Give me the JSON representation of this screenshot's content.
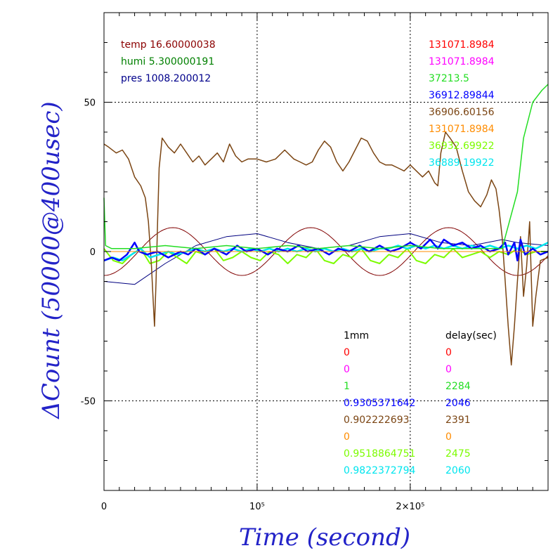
{
  "chart_data": {
    "type": "line",
    "xlabel": "Time (second)",
    "ylabel": "ΔCount (50000@400usec)",
    "xlim": [
      0,
      290000
    ],
    "ylim": [
      -80,
      80
    ],
    "x_tick_labels": [
      {
        "value": 0,
        "label": "0"
      },
      {
        "value": 100000,
        "label": "10⁵"
      },
      {
        "value": 200000,
        "label": "2×10⁵"
      }
    ],
    "y_tick_labels": [
      {
        "value": 50,
        "label": "50"
      },
      {
        "value": 0,
        "label": "0"
      },
      {
        "value": -50,
        "label": "-50"
      }
    ],
    "grid": true,
    "env_readings": [
      {
        "text": "temp 16.60000038",
        "color": "#8b0000"
      },
      {
        "text": "humi 5.300000191",
        "color": "#008000"
      },
      {
        "text": "pres 1008.200012",
        "color": "#00008b"
      }
    ],
    "channel_headers": {
      "col1": "1mm",
      "col2": "delay(sec)"
    },
    "series": [
      {
        "color": "#ff0000",
        "base": "131071.8984",
        "onemm": "0",
        "delay": "0",
        "points": [
          [
            0,
            0
          ],
          [
            290000,
            0
          ]
        ]
      },
      {
        "color": "#ff00ff",
        "base": "131071.8984",
        "onemm": "0",
        "delay": "0",
        "points": [
          [
            0,
            0
          ],
          [
            290000,
            0
          ]
        ]
      },
      {
        "color": "#22dd22",
        "base": "37213.5",
        "onemm": "1",
        "delay": "2284",
        "points": [
          [
            0,
            18
          ],
          [
            1000,
            2
          ],
          [
            5000,
            1
          ],
          [
            20000,
            1
          ],
          [
            40000,
            2
          ],
          [
            60000,
            1
          ],
          [
            80000,
            2
          ],
          [
            100000,
            1
          ],
          [
            120000,
            2
          ],
          [
            140000,
            1
          ],
          [
            160000,
            2
          ],
          [
            180000,
            1
          ],
          [
            200000,
            2
          ],
          [
            220000,
            1
          ],
          [
            240000,
            1
          ],
          [
            260000,
            1
          ],
          [
            270000,
            20
          ],
          [
            274000,
            38
          ],
          [
            280000,
            50
          ],
          [
            286000,
            54
          ],
          [
            290000,
            56
          ]
        ]
      },
      {
        "color": "#0000ff",
        "base": "36912.89844",
        "onemm": "0.9305371642",
        "delay": "2046",
        "points": [
          [
            0,
            -3
          ],
          [
            5000,
            -2
          ],
          [
            10000,
            -3
          ],
          [
            15000,
            -1
          ],
          [
            20000,
            3
          ],
          [
            23000,
            0
          ],
          [
            28000,
            -1
          ],
          [
            35000,
            0
          ],
          [
            42000,
            -2
          ],
          [
            50000,
            0
          ],
          [
            55000,
            -1
          ],
          [
            60000,
            1
          ],
          [
            66000,
            -1
          ],
          [
            72000,
            1
          ],
          [
            80000,
            -1
          ],
          [
            87000,
            2
          ],
          [
            93000,
            0
          ],
          [
            100000,
            1
          ],
          [
            107000,
            -1
          ],
          [
            113000,
            1
          ],
          [
            120000,
            0
          ],
          [
            127000,
            2
          ],
          [
            133000,
            0
          ],
          [
            140000,
            1
          ],
          [
            147000,
            -1
          ],
          [
            153000,
            1
          ],
          [
            160000,
            0
          ],
          [
            167000,
            2
          ],
          [
            173000,
            0
          ],
          [
            180000,
            2
          ],
          [
            187000,
            0
          ],
          [
            193000,
            1
          ],
          [
            200000,
            3
          ],
          [
            207000,
            1
          ],
          [
            213000,
            4
          ],
          [
            218000,
            1
          ],
          [
            222000,
            4
          ],
          [
            228000,
            2
          ],
          [
            234000,
            3
          ],
          [
            240000,
            1
          ],
          [
            246000,
            2
          ],
          [
            252000,
            0
          ],
          [
            258000,
            1
          ],
          [
            262000,
            3
          ],
          [
            264000,
            -1
          ],
          [
            268000,
            3
          ],
          [
            270000,
            -3
          ],
          [
            272000,
            4
          ],
          [
            275000,
            -1
          ],
          [
            280000,
            1
          ],
          [
            285000,
            -1
          ],
          [
            290000,
            0
          ]
        ]
      },
      {
        "color": "#7b4513",
        "base": "36906.60156",
        "onemm": "0.902222693",
        "delay": "2391",
        "points": [
          [
            0,
            36
          ],
          [
            3000,
            35
          ],
          [
            8000,
            33
          ],
          [
            12000,
            34
          ],
          [
            16000,
            31
          ],
          [
            20000,
            25
          ],
          [
            24000,
            22
          ],
          [
            27000,
            18
          ],
          [
            29000,
            10
          ],
          [
            31000,
            -5
          ],
          [
            32000,
            -15
          ],
          [
            33000,
            -25
          ],
          [
            34000,
            -10
          ],
          [
            35000,
            10
          ],
          [
            36000,
            28
          ],
          [
            38000,
            38
          ],
          [
            42000,
            35
          ],
          [
            46000,
            33
          ],
          [
            50000,
            36
          ],
          [
            54000,
            33
          ],
          [
            58000,
            30
          ],
          [
            62000,
            32
          ],
          [
            66000,
            29
          ],
          [
            70000,
            31
          ],
          [
            74000,
            33
          ],
          [
            78000,
            30
          ],
          [
            82000,
            36
          ],
          [
            86000,
            32
          ],
          [
            90000,
            30
          ],
          [
            94000,
            31
          ],
          [
            100000,
            31
          ],
          [
            106000,
            30
          ],
          [
            112000,
            31
          ],
          [
            118000,
            34
          ],
          [
            124000,
            31
          ],
          [
            128000,
            30
          ],
          [
            132000,
            29
          ],
          [
            136000,
            30
          ],
          [
            140000,
            34
          ],
          [
            144000,
            37
          ],
          [
            148000,
            35
          ],
          [
            152000,
            30
          ],
          [
            156000,
            27
          ],
          [
            160000,
            30
          ],
          [
            164000,
            34
          ],
          [
            168000,
            38
          ],
          [
            172000,
            37
          ],
          [
            176000,
            33
          ],
          [
            180000,
            30
          ],
          [
            184000,
            29
          ],
          [
            188000,
            29
          ],
          [
            192000,
            28
          ],
          [
            196000,
            27
          ],
          [
            200000,
            29
          ],
          [
            204000,
            27
          ],
          [
            208000,
            25
          ],
          [
            212000,
            27
          ],
          [
            216000,
            23
          ],
          [
            218000,
            22
          ],
          [
            220000,
            33
          ],
          [
            223000,
            40
          ],
          [
            226000,
            38
          ],
          [
            230000,
            35
          ],
          [
            234000,
            27
          ],
          [
            238000,
            20
          ],
          [
            242000,
            17
          ],
          [
            246000,
            15
          ],
          [
            250000,
            19
          ],
          [
            253000,
            24
          ],
          [
            256000,
            21
          ],
          [
            258000,
            14
          ],
          [
            260000,
            5
          ],
          [
            262000,
            -10
          ],
          [
            264000,
            -25
          ],
          [
            266000,
            -38
          ],
          [
            268000,
            -25
          ],
          [
            270000,
            -10
          ],
          [
            272000,
            5
          ],
          [
            274000,
            -15
          ],
          [
            276000,
            -5
          ],
          [
            278000,
            10
          ],
          [
            280000,
            -25
          ],
          [
            282000,
            -15
          ],
          [
            285000,
            -3
          ],
          [
            290000,
            -2
          ]
        ]
      },
      {
        "color": "#ff8c00",
        "base": "131071.8984",
        "onemm": "0",
        "delay": "0",
        "points": [
          [
            0,
            0
          ],
          [
            290000,
            0
          ]
        ]
      },
      {
        "color": "#7cfc00",
        "base": "36932.69922",
        "onemm": "0.9518864751",
        "delay": "2475",
        "points": [
          [
            0,
            1
          ],
          [
            6000,
            -3
          ],
          [
            12000,
            -4
          ],
          [
            18000,
            -1
          ],
          [
            24000,
            1
          ],
          [
            30000,
            -4
          ],
          [
            36000,
            -3
          ],
          [
            42000,
            0
          ],
          [
            48000,
            -2
          ],
          [
            54000,
            -4
          ],
          [
            60000,
            0
          ],
          [
            66000,
            -1
          ],
          [
            72000,
            1
          ],
          [
            78000,
            -3
          ],
          [
            84000,
            -2
          ],
          [
            90000,
            0
          ],
          [
            96000,
            -2
          ],
          [
            102000,
            -3
          ],
          [
            108000,
            0
          ],
          [
            114000,
            -1
          ],
          [
            120000,
            -4
          ],
          [
            126000,
            -1
          ],
          [
            132000,
            -2
          ],
          [
            138000,
            1
          ],
          [
            144000,
            -3
          ],
          [
            150000,
            -4
          ],
          [
            156000,
            -1
          ],
          [
            162000,
            -2
          ],
          [
            168000,
            1
          ],
          [
            174000,
            -3
          ],
          [
            180000,
            -4
          ],
          [
            186000,
            -1
          ],
          [
            192000,
            -2
          ],
          [
            198000,
            1
          ],
          [
            204000,
            -3
          ],
          [
            210000,
            -4
          ],
          [
            216000,
            -1
          ],
          [
            222000,
            -2
          ],
          [
            228000,
            1
          ],
          [
            234000,
            -2
          ],
          [
            240000,
            -1
          ],
          [
            246000,
            0
          ],
          [
            252000,
            -2
          ],
          [
            258000,
            0
          ],
          [
            264000,
            -1
          ],
          [
            270000,
            1
          ],
          [
            276000,
            -1
          ],
          [
            282000,
            0
          ],
          [
            290000,
            0
          ]
        ]
      },
      {
        "color": "#00e5ee",
        "base": "36889.19922",
        "onemm": "0.9822372794",
        "delay": "2060",
        "points": [
          [
            0,
            -3
          ],
          [
            6000,
            -2
          ],
          [
            12000,
            -3
          ],
          [
            18000,
            -1
          ],
          [
            24000,
            1
          ],
          [
            30000,
            -2
          ],
          [
            36000,
            -1
          ],
          [
            42000,
            0
          ],
          [
            48000,
            -1
          ],
          [
            54000,
            0
          ],
          [
            60000,
            1
          ],
          [
            66000,
            0
          ],
          [
            72000,
            1
          ],
          [
            78000,
            0
          ],
          [
            84000,
            1
          ],
          [
            90000,
            0
          ],
          [
            96000,
            1
          ],
          [
            102000,
            0
          ],
          [
            108000,
            1
          ],
          [
            114000,
            0
          ],
          [
            120000,
            1
          ],
          [
            126000,
            0
          ],
          [
            132000,
            1
          ],
          [
            138000,
            0
          ],
          [
            144000,
            1
          ],
          [
            150000,
            0
          ],
          [
            156000,
            1
          ],
          [
            162000,
            0
          ],
          [
            168000,
            1
          ],
          [
            174000,
            0
          ],
          [
            180000,
            1
          ],
          [
            186000,
            1
          ],
          [
            192000,
            2
          ],
          [
            198000,
            1
          ],
          [
            204000,
            2
          ],
          [
            210000,
            1
          ],
          [
            216000,
            2
          ],
          [
            222000,
            1
          ],
          [
            228000,
            2
          ],
          [
            234000,
            1
          ],
          [
            240000,
            2
          ],
          [
            246000,
            1
          ],
          [
            252000,
            2
          ],
          [
            258000,
            1
          ],
          [
            264000,
            2
          ],
          [
            270000,
            1
          ],
          [
            276000,
            2
          ],
          [
            282000,
            1
          ],
          [
            290000,
            3
          ]
        ]
      }
    ],
    "extra_series": [
      {
        "color": "#800000",
        "kind": "sinusoid",
        "amplitude": 8,
        "period": 90000,
        "phase_x": 0
      },
      {
        "color": "#000080",
        "kind": "smooth",
        "points": [
          [
            0,
            -10
          ],
          [
            20000,
            -11
          ],
          [
            40000,
            -4
          ],
          [
            60000,
            2
          ],
          [
            80000,
            5
          ],
          [
            100000,
            6
          ],
          [
            120000,
            3
          ],
          [
            140000,
            1
          ],
          [
            160000,
            2
          ],
          [
            180000,
            5
          ],
          [
            200000,
            6
          ],
          [
            220000,
            3
          ],
          [
            240000,
            2
          ],
          [
            260000,
            4
          ],
          [
            270000,
            3
          ],
          [
            290000,
            2
          ]
        ]
      }
    ]
  }
}
